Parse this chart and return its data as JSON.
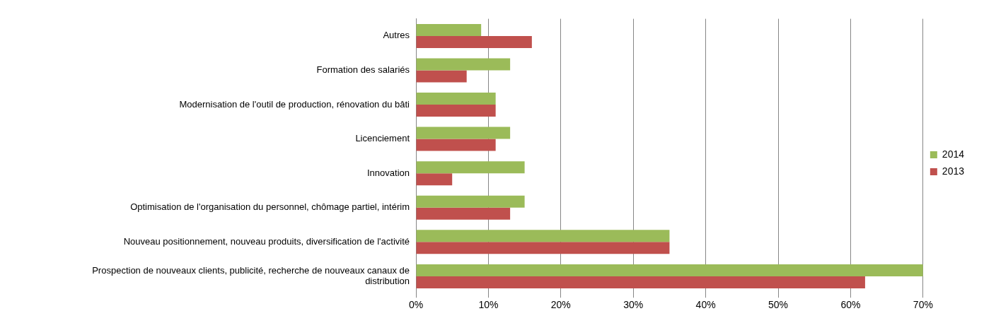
{
  "chart_data": {
    "type": "bar",
    "orientation": "horizontal",
    "categories": [
      "Autres",
      "Formation des salariés",
      "Modernisation de l'outil de production, rénovation du bâti",
      "Licenciement",
      "Innovation",
      "Optimisation de l'organisation du personnel, chômage partiel, intérim",
      "Nouveau positionnement, nouveau produits, diversification de l'activité",
      "Prospection de nouveaux clients, publicité, recherche de nouveaux canaux de distribution"
    ],
    "series": [
      {
        "name": "2014",
        "color": "#9bbb59",
        "values": [
          9,
          13,
          11,
          13,
          15,
          15,
          35,
          70
        ]
      },
      {
        "name": "2013",
        "color": "#c0504d",
        "values": [
          16,
          7,
          11,
          11,
          5,
          13,
          35,
          62
        ]
      }
    ],
    "xlim": [
      0,
      70
    ],
    "xticks": [
      {
        "value": 0,
        "label": "0%"
      },
      {
        "value": 10,
        "label": "10%"
      },
      {
        "value": 20,
        "label": "20%"
      },
      {
        "value": 30,
        "label": "30%"
      },
      {
        "value": 40,
        "label": "40%"
      },
      {
        "value": 50,
        "label": "50%"
      },
      {
        "value": 60,
        "label": "60%"
      },
      {
        "value": 70,
        "label": "70%"
      }
    ],
    "grid": "x",
    "legend": "right"
  }
}
